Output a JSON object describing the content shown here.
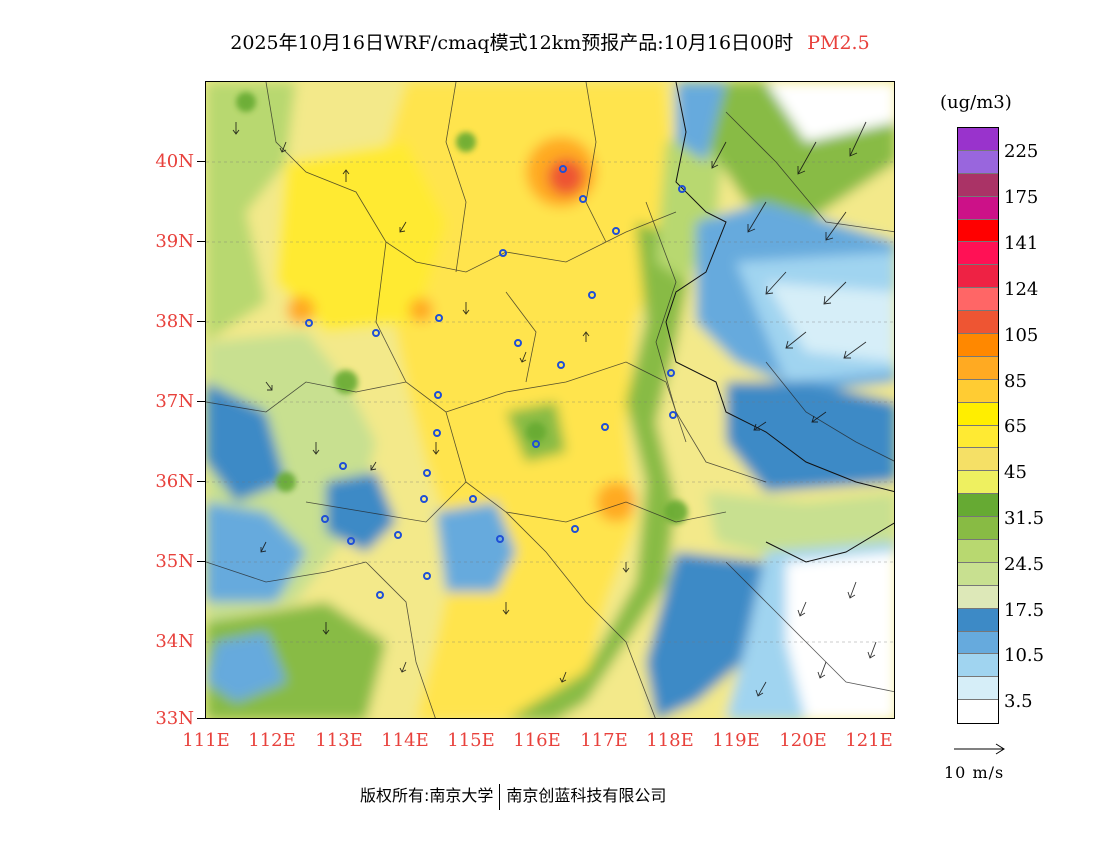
{
  "title": {
    "main": "2025年10月16日WRF/cmaq模式12km预报产品:10月16日00时",
    "pollutant": "PM2.5"
  },
  "map": {
    "lat_ticks": [
      "40N",
      "39N",
      "38N",
      "37N",
      "36N",
      "35N",
      "34N",
      "33N"
    ],
    "lon_ticks": [
      "111E",
      "112E",
      "113E",
      "114E",
      "115E",
      "116E",
      "117E",
      "118E",
      "119E",
      "120E",
      "121E"
    ],
    "lat_range": [
      33,
      41
    ],
    "lon_range": [
      111,
      121.4
    ],
    "wind_direction_general": "northeast-to-southwest flow over the eastern sea, weak variable winds inland",
    "station_marker_color": "#1f4fd6"
  },
  "legend": {
    "unit": "(ug/m3)",
    "colors": [
      "#9933cc",
      "#9966dd",
      "#aa3366",
      "#cc1188",
      "#ff0000",
      "#ff1155",
      "#ee2244",
      "#ff6666",
      "#ee5533",
      "#ff8800",
      "#ffaa22",
      "#ffcc33",
      "#ffee00",
      "#ffea33",
      "#f5e066",
      "#eef060",
      "#66aa33",
      "#88bb44",
      "#b8d870",
      "#c8e090",
      "#dde8b8",
      "#3d8ac6",
      "#66aadd",
      "#a0d4f0",
      "#d6eef8",
      "#ffffff"
    ],
    "labels": [
      "225",
      "175",
      "141",
      "124",
      "105",
      "85",
      "65",
      "45",
      "31.5",
      "24.5",
      "17.5",
      "10.5",
      "3.5"
    ]
  },
  "wind_reference": {
    "label": "10 m/s"
  },
  "footer": {
    "copyright_prefix": "版权所有:",
    "org1": "南京大学",
    "org2": "南京创蓝科技有限公司"
  }
}
